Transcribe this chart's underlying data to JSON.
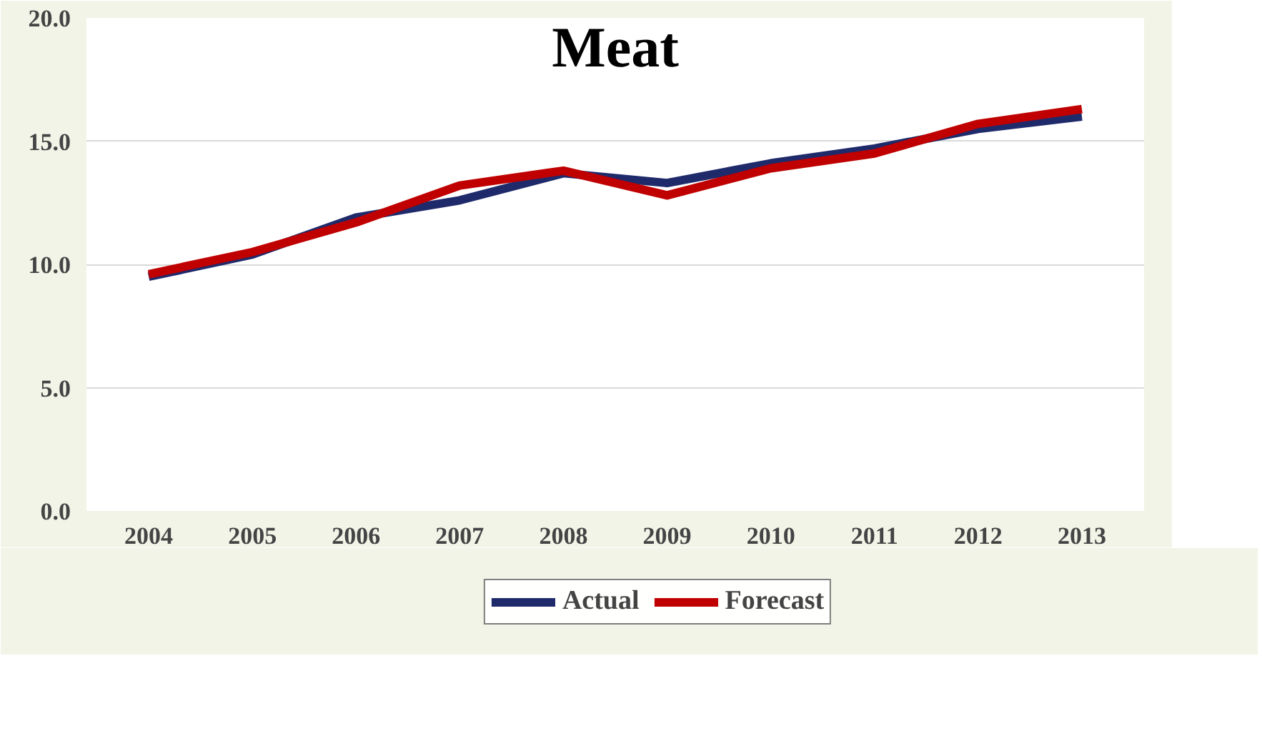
{
  "chart_data": {
    "type": "line",
    "title": "Meat",
    "categories": [
      "2004",
      "2005",
      "2006",
      "2007",
      "2008",
      "2009",
      "2010",
      "2011",
      "2012",
      "2013"
    ],
    "series": [
      {
        "name": "Actual",
        "color": "#1f2a6b",
        "values": [
          9.5,
          10.4,
          11.9,
          12.6,
          13.7,
          13.3,
          14.1,
          14.7,
          15.5,
          16.0
        ]
      },
      {
        "name": "Forecast",
        "color": "#c00000",
        "values": [
          9.6,
          10.5,
          11.7,
          13.2,
          13.8,
          12.8,
          13.9,
          14.5,
          15.7,
          16.3
        ]
      }
    ],
    "ylim": [
      0,
      20
    ],
    "yticks": [
      {
        "value": 0,
        "label": "0.0"
      },
      {
        "value": 5,
        "label": "5.0"
      },
      {
        "value": 10,
        "label": "10.0"
      },
      {
        "value": 15,
        "label": "15.0"
      },
      {
        "value": 20,
        "label": "20.0"
      }
    ],
    "grid": "y",
    "legend": "bottom",
    "marker": "none",
    "line_style": "solid"
  }
}
